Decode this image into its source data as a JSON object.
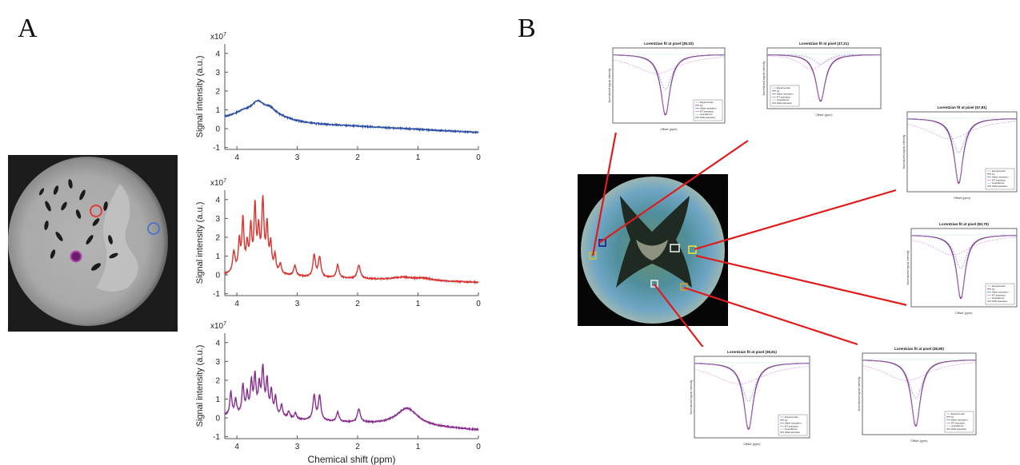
{
  "panel_a": {
    "label": "A",
    "mri_image": {
      "name": "brain-slice-mri",
      "markers": [
        {
          "name": "roi-circle-red",
          "color": "#e83a3a"
        },
        {
          "name": "roi-circle-blue",
          "color": "#3a6fd8"
        },
        {
          "name": "roi-circle-purple",
          "color": "#9a2f9a"
        }
      ]
    }
  },
  "panel_b": {
    "label": "B",
    "center_map_name": "cest-overlay-map",
    "line_color": "#e01b1b",
    "insets": [
      {
        "title": "Lorentzian fit at pixel (38,10)",
        "legend": [
          "Experimental",
          "Fit",
          "Water saturation",
          "MT saturation",
          "Guanidinium",
          "NOE saturation"
        ]
      },
      {
        "title": "Lorentzian fit at pixel (37,21)",
        "legend": [
          "Experimental",
          "Fit",
          "Water saturation",
          "MT saturation",
          "Guanidinium",
          "NOE saturation"
        ]
      },
      {
        "title": "Lorentzian fit at pixel (57,81)",
        "legend": [
          "Experimental",
          "Fit",
          "Water saturation",
          "MT saturation",
          "Guanidinium",
          "NOE saturation"
        ]
      },
      {
        "title": "Lorentzian fit at pixel (50,70)",
        "legend": [
          "Experimental",
          "Fit",
          "Water saturation",
          "MT saturation",
          "Guanidinium",
          "NOE saturation"
        ]
      },
      {
        "title": "Lorentzian fit at pixel (38,81)",
        "legend": [
          "Experimental",
          "Fit",
          "Water saturation",
          "MT saturation",
          "Guanidinium",
          "NOE saturation"
        ]
      },
      {
        "title": "Lorentzian fit at pixel (38,80)",
        "legend": [
          "Experimental",
          "Fit",
          "Water saturation",
          "MT saturation",
          "Guanidinium",
          "NOE saturation"
        ]
      }
    ],
    "inset_xlabel": "Offset (ppm)",
    "inset_ylabel": "Normalized signal intensity"
  },
  "chart_data": [
    {
      "type": "line",
      "name": "spectrum-blue",
      "color": "#2d4fa6",
      "multiplier_label": "x10",
      "multiplier_exp": "7",
      "ylabel": "Signal intensity (a.u.)",
      "xlabel": "",
      "xlim": [
        4.2,
        0
      ],
      "ylim": [
        -1.1,
        4.5
      ],
      "xticks": [
        4,
        3,
        2,
        1,
        0
      ],
      "yticks": [
        -1,
        0,
        1,
        2,
        3,
        4
      ],
      "peaks": [
        {
          "x": 3.65,
          "h": 0.55,
          "w": 0.12
        },
        {
          "x": 3.45,
          "h": 0.25,
          "w": 0.1
        },
        {
          "x": 3.9,
          "h": 0.15,
          "w": 0.15
        }
      ],
      "baseline": {
        "start": 0.5,
        "end": -0.2,
        "hump_center": 3.6,
        "hump_height": 0.45,
        "hump_width": 0.5
      }
    },
    {
      "type": "line",
      "name": "spectrum-red",
      "color": "#d7332f",
      "multiplier_label": "x10",
      "multiplier_exp": "7",
      "ylabel": "Signal intensity (a.u.)",
      "xlabel": "",
      "xlim": [
        4.2,
        0
      ],
      "ylim": [
        -1.1,
        4.5
      ],
      "xticks": [
        4,
        3,
        2,
        1,
        0
      ],
      "yticks": [
        -1,
        0,
        1,
        2,
        3,
        4
      ],
      "peaks": [
        {
          "x": 4.05,
          "h": 1.1,
          "w": 0.025
        },
        {
          "x": 3.96,
          "h": 1.6,
          "w": 0.02
        },
        {
          "x": 3.9,
          "h": 2.7,
          "w": 0.02
        },
        {
          "x": 3.83,
          "h": 1.3,
          "w": 0.02
        },
        {
          "x": 3.77,
          "h": 2.2,
          "w": 0.02
        },
        {
          "x": 3.7,
          "h": 3.3,
          "w": 0.02
        },
        {
          "x": 3.64,
          "h": 2.0,
          "w": 0.02
        },
        {
          "x": 3.57,
          "h": 3.6,
          "w": 0.022
        },
        {
          "x": 3.5,
          "h": 2.3,
          "w": 0.02
        },
        {
          "x": 3.44,
          "h": 1.4,
          "w": 0.02
        },
        {
          "x": 3.37,
          "h": 0.9,
          "w": 0.02
        },
        {
          "x": 3.28,
          "h": 0.5,
          "w": 0.02
        },
        {
          "x": 3.04,
          "h": 0.55,
          "w": 0.025
        },
        {
          "x": 2.72,
          "h": 1.15,
          "w": 0.025
        },
        {
          "x": 2.63,
          "h": 1.05,
          "w": 0.025
        },
        {
          "x": 2.33,
          "h": 0.7,
          "w": 0.025
        },
        {
          "x": 1.98,
          "h": 0.7,
          "w": 0.03
        },
        {
          "x": 1.25,
          "h": 0.15,
          "w": 0.2
        },
        {
          "x": 0.9,
          "h": 0.12,
          "w": 0.15
        }
      ],
      "baseline": {
        "start": 0.0,
        "end": -0.4,
        "hump_center": 3.6,
        "hump_height": 0.2,
        "hump_width": 0.4
      }
    },
    {
      "type": "line",
      "name": "spectrum-purple",
      "color": "#8a2c8f",
      "multiplier_label": "x10",
      "multiplier_exp": "7",
      "ylabel": "Signal intensity (a.u.)",
      "xlabel": "Chemical shift (ppm)",
      "xlim": [
        4.2,
        0
      ],
      "ylim": [
        -1.1,
        4.5
      ],
      "xticks": [
        4,
        3,
        2,
        1,
        0
      ],
      "yticks": [
        -1,
        0,
        1,
        2,
        3,
        4
      ],
      "peaks": [
        {
          "x": 4.1,
          "h": 1.2,
          "w": 0.02
        },
        {
          "x": 4.02,
          "h": 0.8,
          "w": 0.02
        },
        {
          "x": 3.9,
          "h": 1.5,
          "w": 0.02
        },
        {
          "x": 3.83,
          "h": 1.0,
          "w": 0.02
        },
        {
          "x": 3.76,
          "h": 1.6,
          "w": 0.02
        },
        {
          "x": 3.7,
          "h": 1.9,
          "w": 0.02
        },
        {
          "x": 3.63,
          "h": 1.4,
          "w": 0.02
        },
        {
          "x": 3.57,
          "h": 2.3,
          "w": 0.022
        },
        {
          "x": 3.5,
          "h": 1.7,
          "w": 0.02
        },
        {
          "x": 3.43,
          "h": 1.2,
          "w": 0.02
        },
        {
          "x": 3.36,
          "h": 0.9,
          "w": 0.02
        },
        {
          "x": 3.26,
          "h": 0.6,
          "w": 0.02
        },
        {
          "x": 3.14,
          "h": 0.35,
          "w": 0.02
        },
        {
          "x": 3.03,
          "h": 0.3,
          "w": 0.02
        },
        {
          "x": 2.72,
          "h": 1.3,
          "w": 0.025
        },
        {
          "x": 2.63,
          "h": 1.3,
          "w": 0.025
        },
        {
          "x": 2.33,
          "h": 0.5,
          "w": 0.025
        },
        {
          "x": 1.98,
          "h": 0.7,
          "w": 0.03
        },
        {
          "x": 1.18,
          "h": 0.95,
          "w": 0.22
        }
      ],
      "baseline": {
        "start": 0.1,
        "end": -0.65,
        "hump_center": 3.6,
        "hump_height": 0.2,
        "hump_width": 0.4
      }
    }
  ]
}
